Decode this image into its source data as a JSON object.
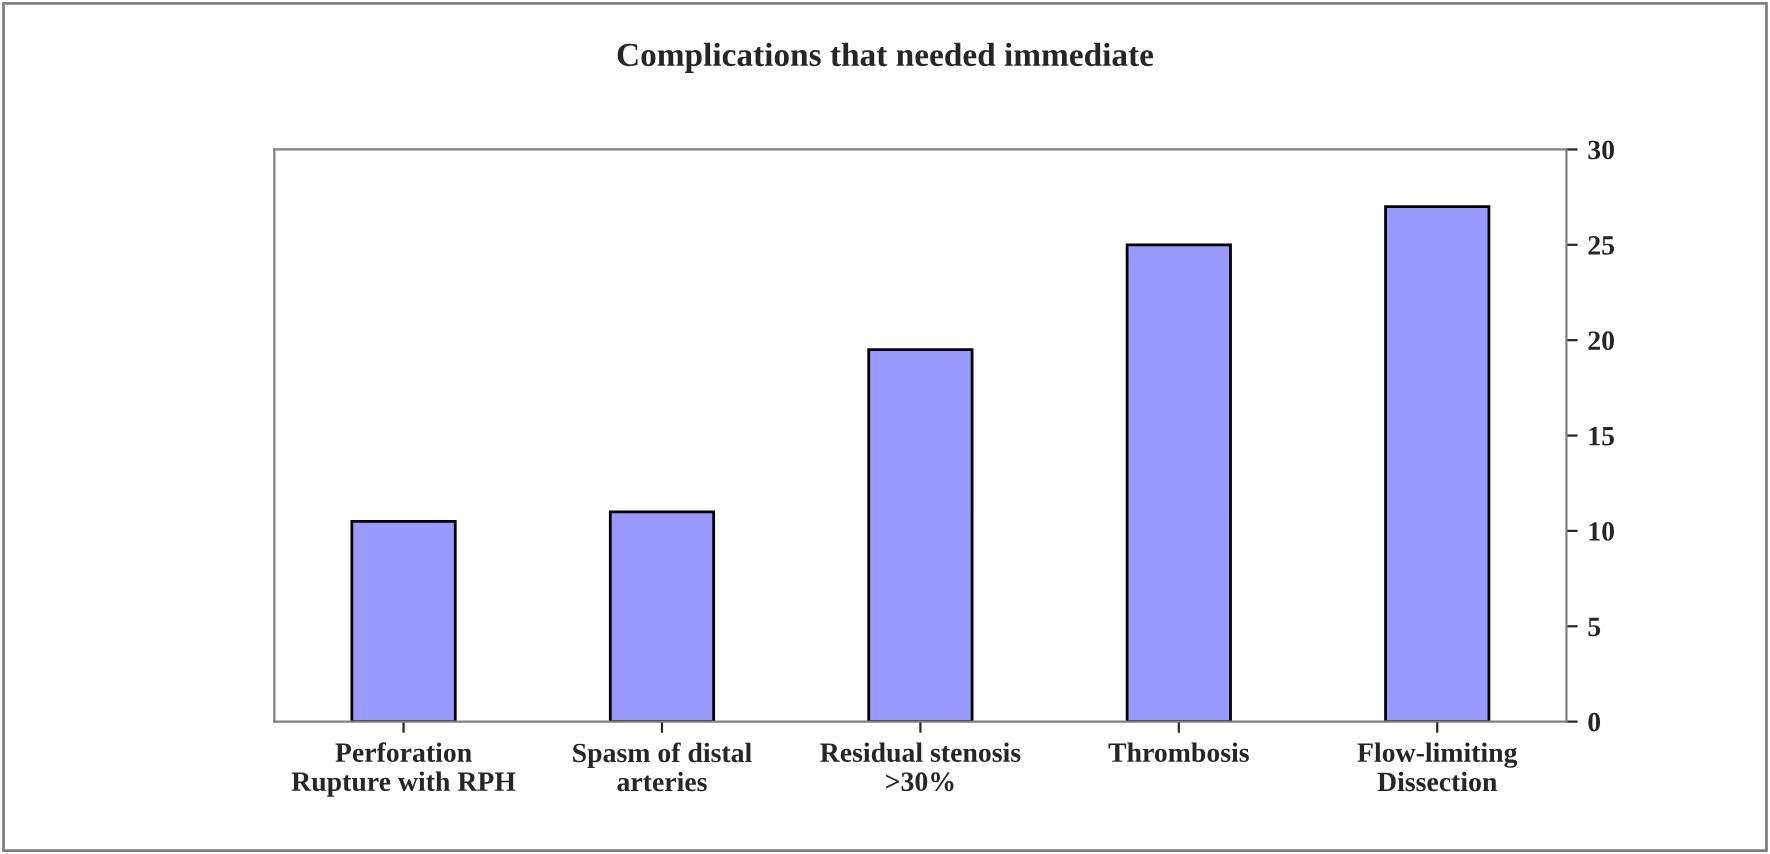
{
  "chart_data": {
    "type": "bar",
    "title": "Complications that needed immediate",
    "categories": [
      "Perforation\nRupture with RPH",
      "Spasm of distal\narteries",
      "Residual stenosis\n>30%",
      "Thrombosis",
      "Flow-limiting\nDissection"
    ],
    "series": [
      {
        "color": "#9999ff",
        "values": [
          10.5,
          11,
          19.5,
          25,
          27
        ]
      }
    ],
    "ylim": [
      0,
      30
    ],
    "yticks": [
      0,
      5,
      10,
      15,
      20,
      25,
      30
    ],
    "grid": false,
    "legend": false
  }
}
